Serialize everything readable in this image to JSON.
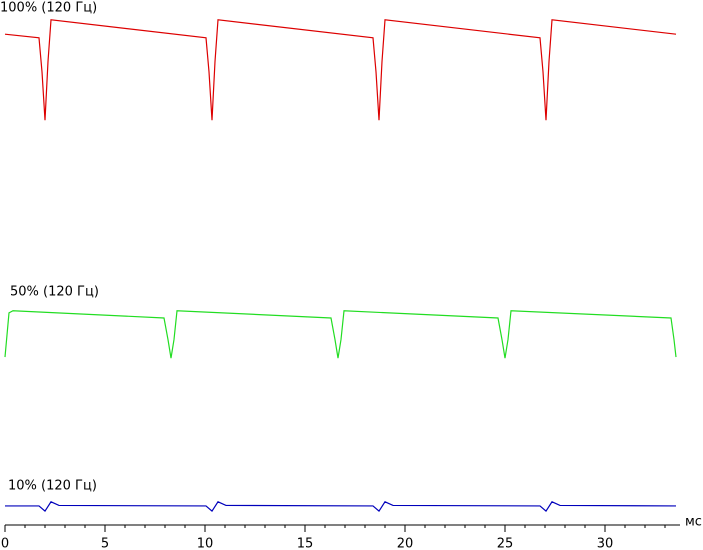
{
  "chart_data": {
    "type": "line",
    "x_label": "мс",
    "xlim": [
      0,
      33.55
    ],
    "xticks": [
      0,
      5,
      10,
      15,
      20,
      25,
      30
    ],
    "ylim": [
      0,
      100
    ],
    "series": [
      {
        "name": "100% (120 Гц)",
        "color": "#dd0000",
        "x": [
          0,
          1.7,
          1.85,
          2.0,
          2.15,
          2.3,
          10.05,
          10.2,
          10.35,
          10.5,
          10.65,
          18.4,
          18.55,
          18.7,
          18.85,
          19.0,
          26.75,
          26.9,
          27.05,
          27.2,
          27.35,
          33.55
        ],
        "values": [
          95.3,
          94.6,
          88,
          78.6,
          90,
          98.1,
          94.6,
          88,
          78.6,
          90,
          98.1,
          94.6,
          88,
          78.6,
          90,
          98.1,
          94.6,
          88,
          78.6,
          90,
          98.1,
          95.3
        ]
      },
      {
        "name": "50% (120 Гц)",
        "color": "#22dd22",
        "x": [
          0,
          0.2,
          0.4,
          7.95,
          8.15,
          8.3,
          8.45,
          8.6,
          16.3,
          16.5,
          16.65,
          16.8,
          16.95,
          24.65,
          24.85,
          25.0,
          25.15,
          25.3,
          33.3,
          33.45,
          33.55
        ],
        "values": [
          32.6,
          41.2,
          41.6,
          40.2,
          36,
          32.4,
          36,
          41.6,
          40.2,
          36,
          32.4,
          36,
          41.6,
          40.2,
          36,
          32.4,
          36,
          41.6,
          40.2,
          36,
          32.6
        ]
      },
      {
        "name": "10% (120 Гц)",
        "color": "#0000bb",
        "x": [
          0,
          1.7,
          2.0,
          2.3,
          2.7,
          10.05,
          10.35,
          10.65,
          11.05,
          18.4,
          18.7,
          19.0,
          19.4,
          26.75,
          27.05,
          27.35,
          27.75,
          33.55
        ],
        "values": [
          3.7,
          3.7,
          2.7,
          4.5,
          3.8,
          3.7,
          2.7,
          4.5,
          3.8,
          3.7,
          2.7,
          4.5,
          3.8,
          3.7,
          2.7,
          4.5,
          3.8,
          3.7
        ]
      }
    ]
  }
}
